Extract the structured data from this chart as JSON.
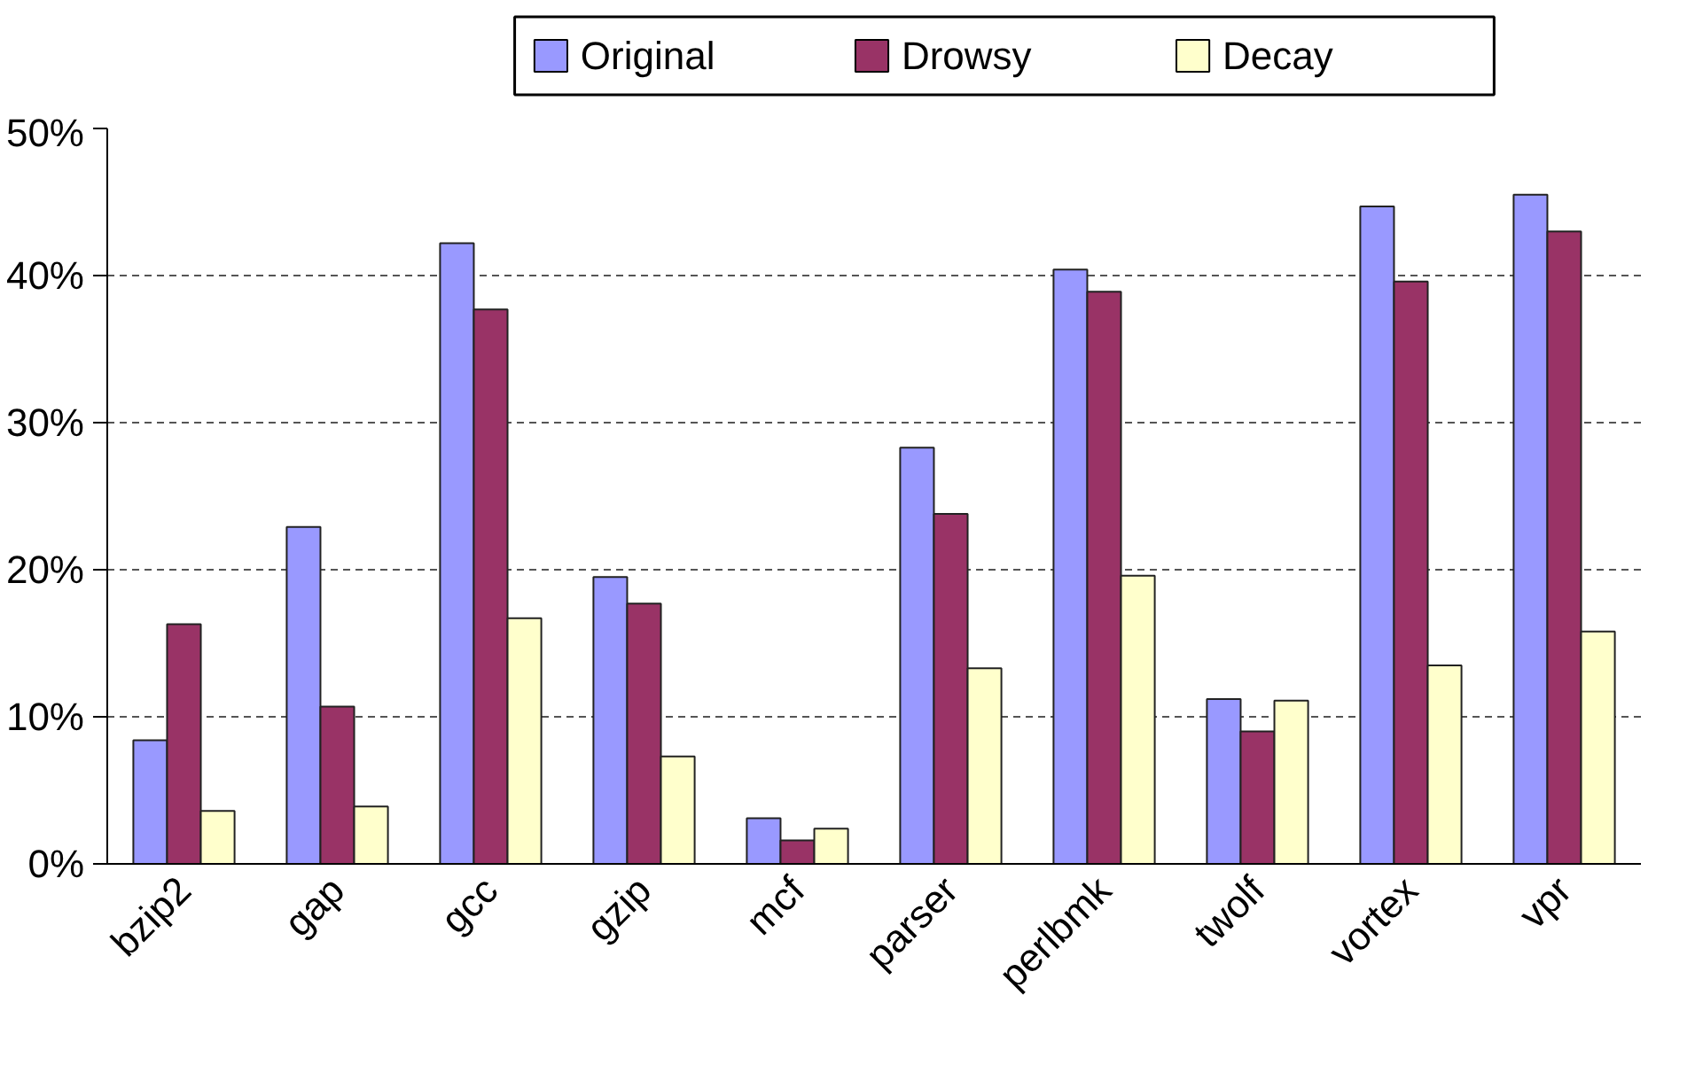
{
  "chart_data": {
    "type": "bar",
    "categories": [
      "bzip2",
      "gap",
      "gcc",
      "gzip",
      "mcf",
      "parser",
      "perlbmk",
      "twolf",
      "vortex",
      "vpr"
    ],
    "series": [
      {
        "name": "Original",
        "color": "#9999ff",
        "values": [
          8.4,
          22.9,
          42.2,
          19.5,
          3.1,
          28.3,
          40.4,
          11.2,
          44.7,
          45.5
        ]
      },
      {
        "name": "Drowsy",
        "color": "#993366",
        "values": [
          16.3,
          10.7,
          37.7,
          17.7,
          1.6,
          23.8,
          38.9,
          9.0,
          39.6,
          43.0
        ]
      },
      {
        "name": "Decay",
        "color": "#ffffcc",
        "values": [
          3.6,
          3.9,
          16.7,
          7.3,
          2.4,
          13.3,
          19.6,
          11.1,
          13.5,
          15.8
        ]
      }
    ],
    "ylim": [
      0,
      50
    ],
    "yticks": [
      {
        "value": 0,
        "label": "0%"
      },
      {
        "value": 10,
        "label": "10%"
      },
      {
        "value": 20,
        "label": "20%"
      },
      {
        "value": 30,
        "label": "30%"
      },
      {
        "value": 40,
        "label": "40%"
      },
      {
        "value": 50,
        "label": "50%"
      }
    ],
    "grid": "y",
    "legend": "top"
  }
}
